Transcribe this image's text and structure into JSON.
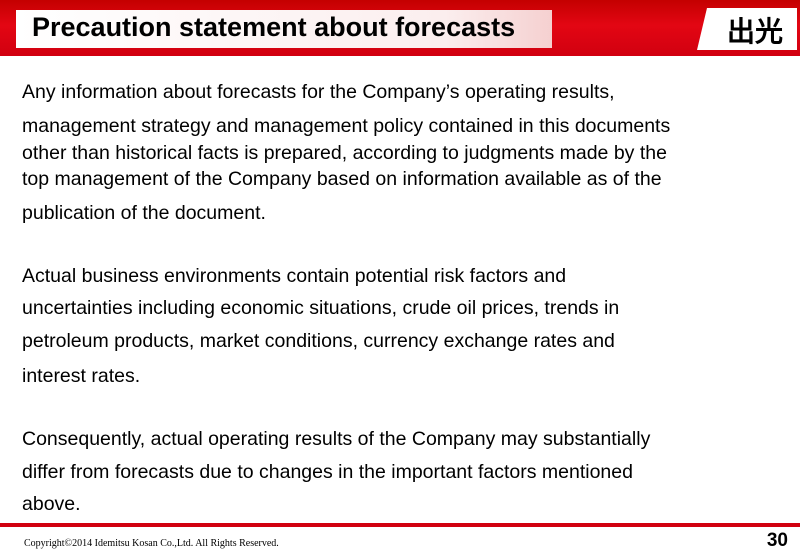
{
  "header": {
    "title": "Precaution statement about forecasts",
    "logo_text": "出光"
  },
  "body": {
    "paragraph1": [
      "Any information about forecasts for the Company’s operating results,",
      "management strategy and management policy contained in this documents",
      "other than historical facts is prepared, according to judgments made by the",
      "top management of the Company based on information available as of the",
      "publication of the document."
    ],
    "paragraph2": [
      "Actual business environments contain potential risk factors and",
      "uncertainties including economic situations, crude oil prices, trends in",
      "petroleum products, market conditions, currency exchange rates and",
      "interest rates."
    ],
    "paragraph3": [
      "Consequently, actual operating results of the Company may substantially",
      "differ from forecasts due to changes in the important factors mentioned",
      "above."
    ]
  },
  "footer": {
    "copyright": "Copyright©2014 Idemitsu Kosan Co.,Ltd. All Rights Reserved.",
    "page_number": "30"
  },
  "colors": {
    "header_red": "#e30613",
    "rule_red": "#d10010"
  }
}
